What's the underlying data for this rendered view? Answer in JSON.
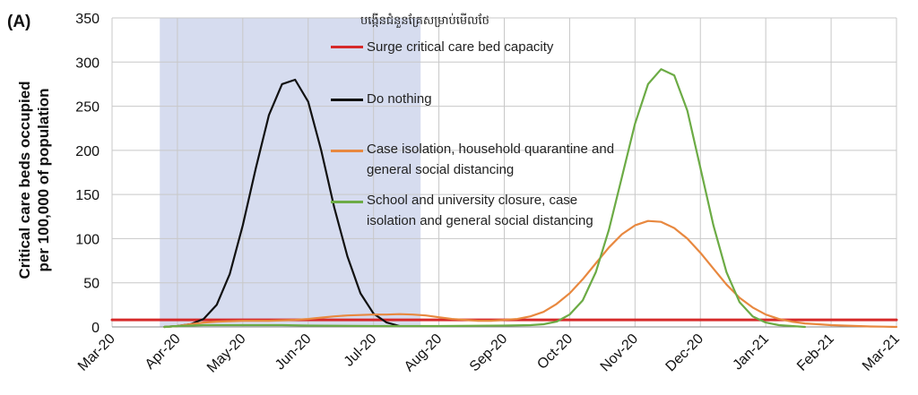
{
  "panel_label": "(A)",
  "subtitle": "បង្កើនជំនួនគ្រែសម្រាប់មើលថែ",
  "colors": {
    "capacity": "#d62a2a",
    "do_nothing": "#111111",
    "case_isolation": "#e8883f",
    "school_closure": "#6cab45",
    "shade": "#d6dcef",
    "grid": "#c8c8c8"
  },
  "chart_data": {
    "type": "line",
    "ylabel_line1": "Critical care beds occupied",
    "ylabel_line2": "per 100,000 of population",
    "ylim": [
      0,
      350
    ],
    "yticks": [
      0,
      50,
      100,
      150,
      200,
      250,
      300,
      350
    ],
    "xticks": [
      "Mar-20",
      "Apr-20",
      "May-20",
      "Jun-20",
      "Jul-20",
      "Aug-20",
      "Sep-20",
      "Oct-20",
      "Nov-20",
      "Dec-20",
      "Jan-21",
      "Feb-21",
      "Mar-21"
    ],
    "x_unit": "months since Mar-20",
    "shaded_interval": [
      0.73,
      4.72
    ],
    "grid": true,
    "legend": [
      {
        "key": "capacity",
        "label": "Surge critical care bed capacity"
      },
      {
        "key": "do_nothing",
        "label": "Do nothing"
      },
      {
        "key": "case_isolation",
        "label_lines": [
          "Case isolation, household quarantine and",
          "general social distancing"
        ]
      },
      {
        "key": "school_closure",
        "label_lines": [
          "School and university closure, case",
          "isolation and general social distancing"
        ]
      }
    ],
    "series": [
      {
        "name": "Surge critical care bed capacity",
        "color_key": "capacity",
        "x": [
          0,
          12
        ],
        "y": [
          8,
          8
        ]
      },
      {
        "name": "Do nothing",
        "color_key": "do_nothing",
        "x": [
          0.8,
          1.0,
          1.2,
          1.4,
          1.6,
          1.8,
          2.0,
          2.2,
          2.4,
          2.6,
          2.8,
          3.0,
          3.2,
          3.4,
          3.6,
          3.8,
          4.0,
          4.2,
          4.4
        ],
        "y": [
          0,
          1,
          3,
          9,
          25,
          60,
          115,
          180,
          240,
          275,
          280,
          255,
          200,
          135,
          80,
          38,
          15,
          5,
          1
        ]
      },
      {
        "name": "Case isolation, household quarantine and general social distancing",
        "color_key": "case_isolation",
        "x": [
          0.8,
          1.0,
          1.2,
          1.4,
          1.6,
          1.8,
          2.0,
          2.2,
          2.4,
          2.6,
          2.8,
          3.0,
          3.2,
          3.4,
          3.6,
          3.8,
          4.0,
          4.2,
          4.4,
          4.6,
          4.8,
          5.0,
          5.2,
          5.4,
          5.6,
          5.8,
          6.0,
          6.2,
          6.4,
          6.6,
          6.8,
          7.0,
          7.2,
          7.4,
          7.6,
          7.8,
          8.0,
          8.2,
          8.4,
          8.6,
          8.8,
          9.0,
          9.2,
          9.4,
          9.6,
          9.8,
          10.0,
          10.2,
          10.4,
          10.6,
          10.8,
          11.0,
          11.2,
          11.4,
          11.6,
          11.8,
          12.0
        ],
        "y": [
          0,
          1,
          3,
          5,
          6,
          6.5,
          7,
          7,
          7,
          7.5,
          8,
          9,
          10.5,
          12,
          13,
          13.5,
          14,
          14,
          14.5,
          14,
          13,
          11,
          9,
          8,
          7,
          7,
          8,
          9,
          12,
          17,
          26,
          38,
          54,
          72,
          90,
          105,
          115,
          120,
          119,
          112,
          100,
          84,
          66,
          48,
          33,
          22,
          14,
          9,
          6,
          4,
          3,
          2,
          1.5,
          1,
          0.5,
          0.3,
          0
        ]
      },
      {
        "name": "School and university closure, case isolation and general social distancing",
        "color_key": "school_closure",
        "x": [
          0.8,
          1.0,
          1.4,
          2.0,
          2.6,
          3.0,
          4.0,
          5.0,
          6.0,
          6.4,
          6.6,
          6.8,
          7.0,
          7.2,
          7.4,
          7.6,
          7.8,
          8.0,
          8.2,
          8.4,
          8.6,
          8.8,
          9.0,
          9.2,
          9.4,
          9.6,
          9.8,
          10.0,
          10.2,
          10.4,
          10.6
        ],
        "y": [
          0,
          1,
          2,
          2,
          2,
          1.5,
          1,
          1,
          1.5,
          2,
          3,
          6,
          14,
          30,
          62,
          110,
          170,
          230,
          275,
          292,
          285,
          245,
          180,
          115,
          62,
          28,
          12,
          5,
          2,
          1,
          0
        ]
      }
    ]
  }
}
